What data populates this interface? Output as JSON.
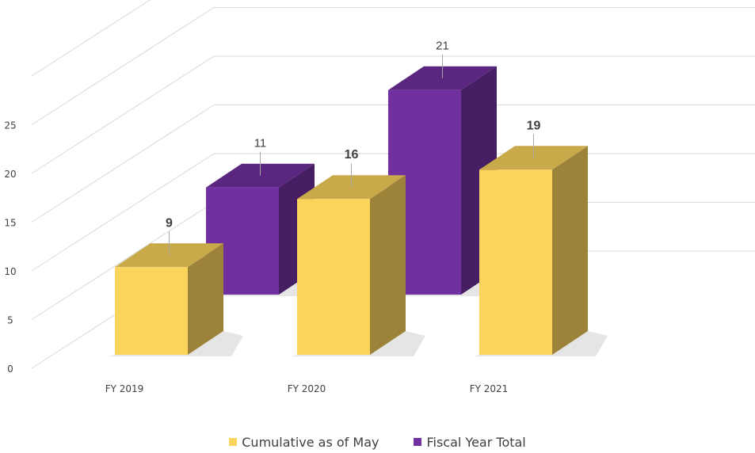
{
  "chart_data": {
    "type": "bar",
    "categories": [
      "FY 2019",
      "FY 2020",
      "FY 2021"
    ],
    "series": [
      {
        "name": "Cumulative as of May",
        "values": [
          9,
          16,
          19
        ],
        "color": "#FBD45C"
      },
      {
        "name": "Fiscal Year Total",
        "values": [
          11,
          null,
          21
        ],
        "color": "#7030A0"
      }
    ],
    "ylim": [
      0,
      25
    ],
    "yticks": [
      "0",
      "5",
      "10",
      "15",
      "20",
      "25"
    ],
    "grid": true,
    "legend_position": "bottom",
    "style": "3d-clustered-column"
  }
}
